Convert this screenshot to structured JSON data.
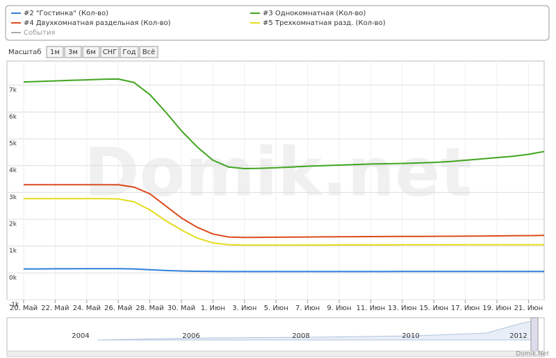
{
  "chart_data": {
    "type": "line",
    "legend": {
      "extra_item": "События"
    },
    "range_selector": {
      "label": "Масштаб",
      "buttons": [
        "1м",
        "3м",
        "6м",
        "СНГ",
        "Год",
        "Всё"
      ]
    },
    "watermark": "Domik.net",
    "credit": "Domik.Net",
    "navigator": {
      "labels": [
        "2004",
        "2006",
        "2008",
        "2010",
        "2012"
      ]
    },
    "categories": [
      "20. Май",
      null,
      "22. Май",
      null,
      "24. Май",
      null,
      "26. Май",
      null,
      "28. Май",
      null,
      "30. Май",
      null,
      "1. Июн",
      null,
      "3. Июн",
      null,
      "5. Июн",
      null,
      "7. Июн",
      null,
      "9. Июн",
      null,
      "11. Июн",
      null,
      "13. Июн",
      null,
      "15. Июн",
      null,
      "17. Июн",
      null,
      "19. Июн",
      null,
      "21. Июн",
      null
    ],
    "series": [
      {
        "name": "#2 \"Гостинка\" (Кол-во)",
        "color": "#2f7ed8",
        "values": [
          150,
          150,
          155,
          155,
          160,
          160,
          160,
          150,
          120,
          90,
          70,
          60,
          55,
          50,
          50,
          50,
          50,
          50,
          50,
          50,
          50,
          50,
          51,
          51,
          52,
          52,
          53,
          53,
          54,
          54,
          55,
          55,
          55,
          55
        ]
      },
      {
        "name": "#3 Однокомнатная (Кол-во)",
        "color": "#3fa51f",
        "values": [
          7120,
          7140,
          7160,
          7180,
          7200,
          7220,
          7230,
          7100,
          6650,
          6000,
          5300,
          4700,
          4200,
          3950,
          3890,
          3900,
          3920,
          3950,
          3980,
          4000,
          4020,
          4040,
          4060,
          4070,
          4080,
          4100,
          4120,
          4150,
          4200,
          4250,
          4300,
          4350,
          4420,
          4530
        ]
      },
      {
        "name": "#4 Двухкомнатная раздельная (Кол-во)",
        "color": "#dc4a1c",
        "values": [
          3290,
          3290,
          3290,
          3290,
          3290,
          3290,
          3290,
          3200,
          2950,
          2500,
          2050,
          1700,
          1450,
          1340,
          1320,
          1325,
          1330,
          1335,
          1340,
          1345,
          1350,
          1352,
          1355,
          1358,
          1360,
          1362,
          1365,
          1368,
          1370,
          1375,
          1380,
          1385,
          1390,
          1400
        ]
      },
      {
        "name": "#5 Трехкомнатная разд. (Кол-во)",
        "color": "#e3dc1c",
        "values": [
          2770,
          2770,
          2770,
          2770,
          2770,
          2770,
          2760,
          2650,
          2350,
          1950,
          1600,
          1300,
          1120,
          1050,
          1040,
          1040,
          1040,
          1040,
          1042,
          1042,
          1044,
          1044,
          1045,
          1045,
          1046,
          1046,
          1047,
          1047,
          1048,
          1048,
          1049,
          1049,
          1050,
          1050
        ]
      }
    ],
    "ylim": [
      -1000,
      7900
    ],
    "yticks": [
      {
        "value": -1000,
        "label": "-1k"
      },
      {
        "value": 0,
        "label": "0k"
      },
      {
        "value": 1000,
        "label": "1k"
      },
      {
        "value": 2000,
        "label": "2k"
      },
      {
        "value": 3000,
        "label": "3k"
      },
      {
        "value": 4000,
        "label": "4k"
      },
      {
        "value": 5000,
        "label": "5k"
      },
      {
        "value": 6000,
        "label": "6k"
      },
      {
        "value": 7000,
        "label": "7k"
      }
    ],
    "grid": true
  }
}
